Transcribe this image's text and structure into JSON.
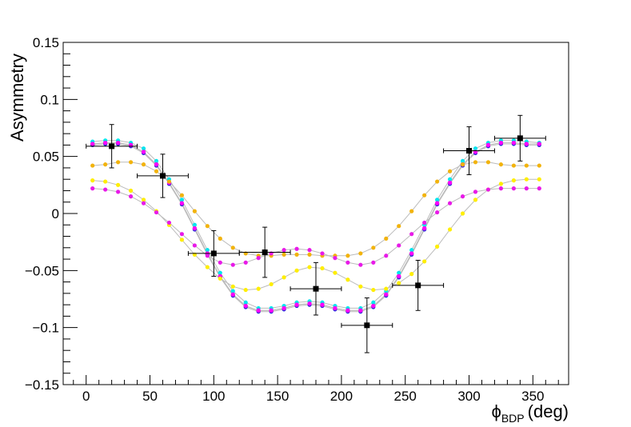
{
  "chart_data": {
    "type": "scatter",
    "title": "",
    "ylabel": "Asymmetry",
    "xlabel": {
      "symbol": "ϕ",
      "subscript": "BDP",
      "unit": "(deg)"
    },
    "xlim": [
      -18,
      378
    ],
    "ylim": [
      -0.15,
      0.15
    ],
    "xticks": [
      {
        "value": 0,
        "label": "0"
      },
      {
        "value": 50,
        "label": "50"
      },
      {
        "value": 100,
        "label": "100"
      },
      {
        "value": 150,
        "label": "150"
      },
      {
        "value": 200,
        "label": "200"
      },
      {
        "value": 250,
        "label": "250"
      },
      {
        "value": 300,
        "label": "300"
      },
      {
        "value": 350,
        "label": "350"
      }
    ],
    "yticks": [
      {
        "value": 0.15,
        "label": "0.15"
      },
      {
        "value": 0.1,
        "label": "0.1"
      },
      {
        "value": 0.05,
        "label": "0.05"
      },
      {
        "value": 0,
        "label": "0"
      },
      {
        "value": -0.05,
        "label": "−0.05"
      },
      {
        "value": -0.1,
        "label": "−0.1"
      },
      {
        "value": -0.15,
        "label": "−0.15"
      }
    ],
    "grid": false,
    "legend": "none",
    "data_points": {
      "color": "#000000",
      "x": [
        20,
        60,
        100,
        140,
        180,
        220,
        260,
        300,
        340
      ],
      "y": [
        0.059,
        0.033,
        -0.035,
        -0.034,
        -0.066,
        -0.098,
        -0.063,
        0.055,
        0.066
      ],
      "xerr": [
        20,
        20,
        20,
        20,
        20,
        20,
        20,
        20,
        20
      ],
      "yerr": [
        0.019,
        0.019,
        0.02,
        0.022,
        0.023,
        0.024,
        0.022,
        0.021,
        0.02
      ]
    },
    "model_series": [
      {
        "color": "#00e5ee",
        "x": [
          5,
          15,
          25,
          35,
          45,
          55,
          65,
          75,
          85,
          95,
          105,
          115,
          125,
          135,
          145,
          155,
          165,
          175,
          185,
          195,
          205,
          215,
          225,
          235,
          245,
          255,
          265,
          275,
          285,
          295,
          305,
          315,
          325,
          335,
          345,
          355
        ],
        "y": [
          0.063,
          0.064,
          0.064,
          0.062,
          0.057,
          0.046,
          0.03,
          0.012,
          -0.01,
          -0.032,
          -0.052,
          -0.068,
          -0.078,
          -0.083,
          -0.083,
          -0.081,
          -0.078,
          -0.077,
          -0.078,
          -0.081,
          -0.083,
          -0.083,
          -0.078,
          -0.068,
          -0.052,
          -0.032,
          -0.01,
          0.012,
          0.03,
          0.046,
          0.057,
          0.062,
          0.064,
          0.064,
          0.063,
          0.062
        ]
      },
      {
        "color": "#2a2adf",
        "x": [
          5,
          15,
          25,
          35,
          45,
          55,
          65,
          75,
          85,
          95,
          105,
          115,
          125,
          135,
          145,
          155,
          165,
          175,
          185,
          195,
          205,
          215,
          225,
          235,
          245,
          255,
          265,
          275,
          285,
          295,
          305,
          315,
          325,
          335,
          345,
          355
        ],
        "y": [
          0.06,
          0.061,
          0.061,
          0.059,
          0.053,
          0.042,
          0.026,
          0.008,
          -0.014,
          -0.036,
          -0.056,
          -0.072,
          -0.082,
          -0.086,
          -0.086,
          -0.084,
          -0.081,
          -0.08,
          -0.081,
          -0.084,
          -0.086,
          -0.086,
          -0.082,
          -0.072,
          -0.056,
          -0.036,
          -0.014,
          0.008,
          0.026,
          0.042,
          0.053,
          0.059,
          0.061,
          0.061,
          0.06,
          0.06
        ]
      },
      {
        "color": "#d0102a",
        "x": [
          5,
          15,
          25,
          35,
          45,
          55,
          65,
          75,
          85,
          95,
          105,
          115,
          125,
          135,
          145,
          155,
          165,
          175,
          185,
          195,
          205,
          215,
          225,
          235,
          245,
          255,
          265,
          275,
          285,
          295,
          305,
          315,
          325,
          335,
          345,
          355
        ],
        "y": [
          0.061,
          0.062,
          0.062,
          0.06,
          0.054,
          0.043,
          0.027,
          0.009,
          -0.013,
          -0.035,
          -0.055,
          -0.071,
          -0.081,
          -0.085,
          -0.085,
          -0.083,
          -0.08,
          -0.079,
          -0.08,
          -0.083,
          -0.085,
          -0.085,
          -0.081,
          -0.071,
          -0.055,
          -0.035,
          -0.013,
          0.009,
          0.027,
          0.043,
          0.054,
          0.06,
          0.062,
          0.062,
          0.061,
          0.061
        ]
      },
      {
        "color": "#ff00ff",
        "x": [
          5,
          15,
          25,
          35,
          45,
          55,
          65,
          75,
          85,
          95,
          105,
          115,
          125,
          135,
          145,
          155,
          165,
          175,
          185,
          195,
          205,
          215,
          225,
          235,
          245,
          255,
          265,
          275,
          285,
          295,
          305,
          315,
          325,
          335,
          345,
          355
        ],
        "y": [
          0.061,
          0.062,
          0.062,
          0.06,
          0.054,
          0.043,
          0.027,
          0.009,
          -0.013,
          -0.035,
          -0.055,
          -0.071,
          -0.081,
          -0.085,
          -0.085,
          -0.083,
          -0.08,
          -0.079,
          -0.08,
          -0.083,
          -0.085,
          -0.085,
          -0.081,
          -0.071,
          -0.055,
          -0.035,
          -0.013,
          0.009,
          0.027,
          0.043,
          0.054,
          0.06,
          0.062,
          0.062,
          0.061,
          0.061
        ]
      },
      {
        "color": "#f2b30c",
        "x": [
          5,
          15,
          25,
          35,
          45,
          55,
          65,
          75,
          85,
          95,
          105,
          115,
          125,
          135,
          145,
          155,
          165,
          175,
          185,
          195,
          205,
          215,
          225,
          235,
          245,
          255,
          265,
          275,
          285,
          295,
          305,
          315,
          325,
          335,
          345,
          355
        ],
        "y": [
          0.042,
          0.043,
          0.045,
          0.045,
          0.043,
          0.037,
          0.028,
          0.016,
          0.002,
          -0.011,
          -0.022,
          -0.03,
          -0.035,
          -0.037,
          -0.037,
          -0.036,
          -0.036,
          -0.036,
          -0.037,
          -0.037,
          -0.037,
          -0.035,
          -0.03,
          -0.022,
          -0.011,
          0.002,
          0.016,
          0.028,
          0.037,
          0.043,
          0.045,
          0.045,
          0.043,
          0.042,
          0.042,
          0.042
        ]
      },
      {
        "color": "#ffee00",
        "x": [
          5,
          15,
          25,
          35,
          45,
          55,
          65,
          75,
          85,
          95,
          105,
          115,
          125,
          135,
          145,
          155,
          165,
          175,
          185,
          195,
          205,
          215,
          225,
          235,
          245,
          255,
          265,
          275,
          285,
          295,
          305,
          315,
          325,
          335,
          345,
          355
        ],
        "y": [
          0.029,
          0.028,
          0.025,
          0.02,
          0.012,
          0.002,
          -0.01,
          -0.023,
          -0.036,
          -0.047,
          -0.057,
          -0.064,
          -0.067,
          -0.066,
          -0.062,
          -0.056,
          -0.05,
          -0.047,
          -0.048,
          -0.052,
          -0.058,
          -0.064,
          -0.067,
          -0.066,
          -0.061,
          -0.053,
          -0.042,
          -0.029,
          -0.014,
          0.0,
          0.012,
          0.021,
          0.026,
          0.029,
          0.03,
          0.03
        ]
      },
      {
        "color": "#e81ae8",
        "x": [
          5,
          15,
          25,
          35,
          45,
          55,
          65,
          75,
          85,
          95,
          105,
          115,
          125,
          135,
          145,
          155,
          165,
          175,
          185,
          195,
          205,
          215,
          225,
          235,
          245,
          255,
          265,
          275,
          285,
          295,
          305,
          315,
          325,
          335,
          345,
          355
        ],
        "y": [
          0.022,
          0.021,
          0.019,
          0.015,
          0.009,
          0.001,
          -0.008,
          -0.018,
          -0.028,
          -0.037,
          -0.043,
          -0.045,
          -0.043,
          -0.039,
          -0.035,
          -0.032,
          -0.031,
          -0.032,
          -0.035,
          -0.039,
          -0.043,
          -0.045,
          -0.043,
          -0.037,
          -0.028,
          -0.018,
          -0.008,
          0.001,
          0.009,
          0.015,
          0.019,
          0.021,
          0.022,
          0.022,
          0.022,
          0.022
        ]
      }
    ],
    "curve_color": "#bbbbbb",
    "axis_color": "#000000"
  }
}
